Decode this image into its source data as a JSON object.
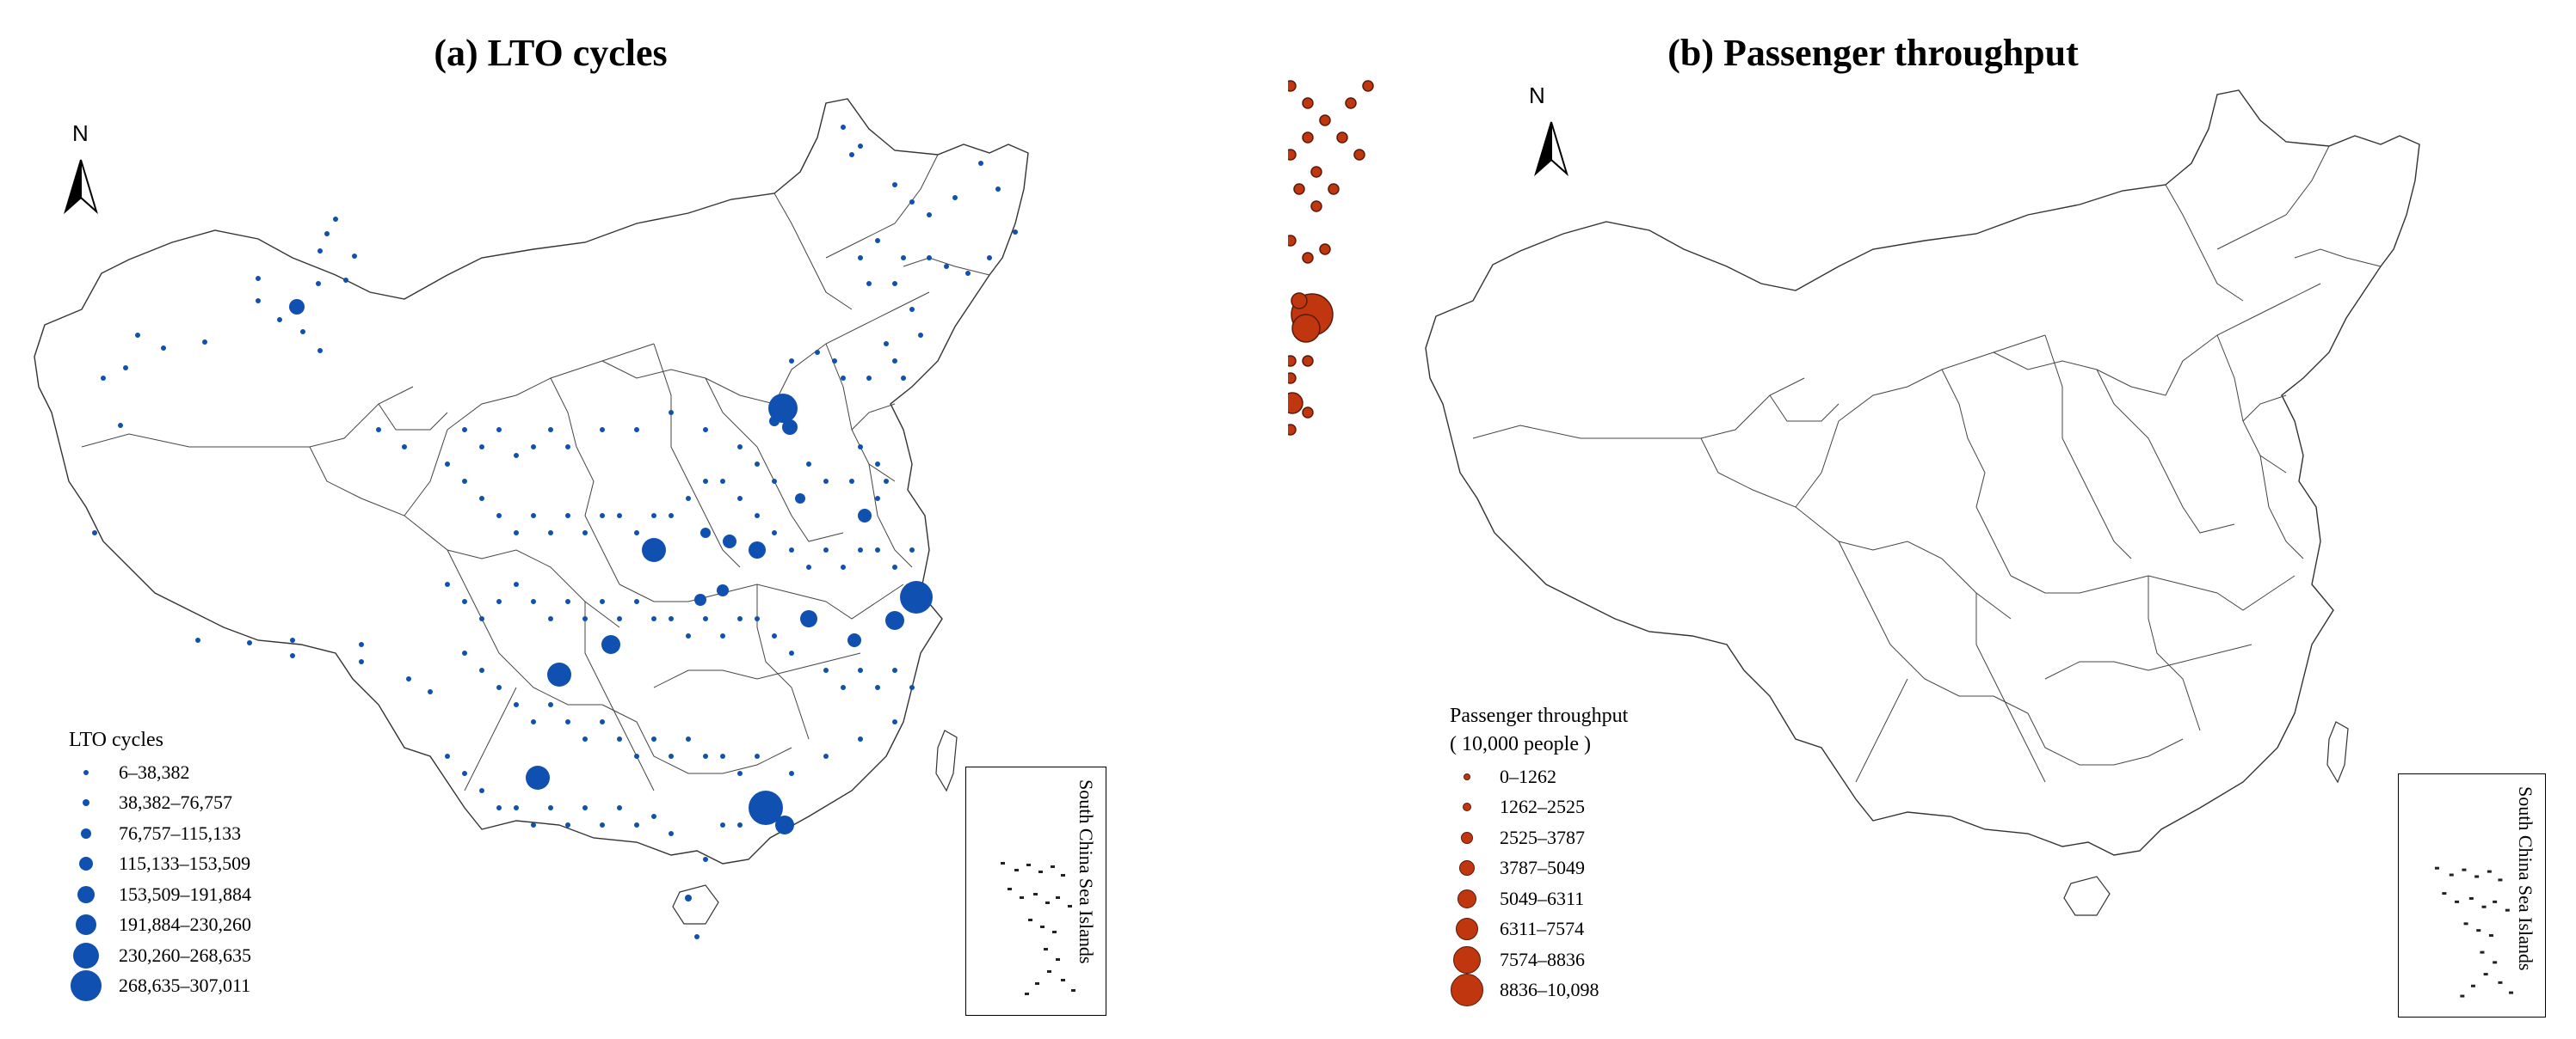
{
  "panels": {
    "a": {
      "title": "(a) LTO cycles",
      "north": "N",
      "legend_title": "LTO cycles",
      "legend": [
        "6–38,382",
        "38,382–76,757",
        "76,757–115,133",
        "115,133–153,509",
        "153,509–191,884",
        "191,884–230,260",
        "230,260–268,635",
        "268,635–307,011"
      ],
      "inset_label": "South China Sea Islands",
      "color": "#1050b0"
    },
    "b": {
      "title": "(b) Passenger throughput",
      "north": "N",
      "legend_title": "Passenger throughput",
      "legend_subtitle": "( 10,000 people )",
      "legend": [
        "0–1262",
        "1262–2525",
        "2525–3787",
        "3787–5049",
        "5049–6311",
        "6311–7574",
        "7574–8836",
        "8836–10,098"
      ],
      "inset_label": "South China Sea Islands",
      "color": "#c0360e",
      "stroke": "#5a1a08"
    }
  }
}
